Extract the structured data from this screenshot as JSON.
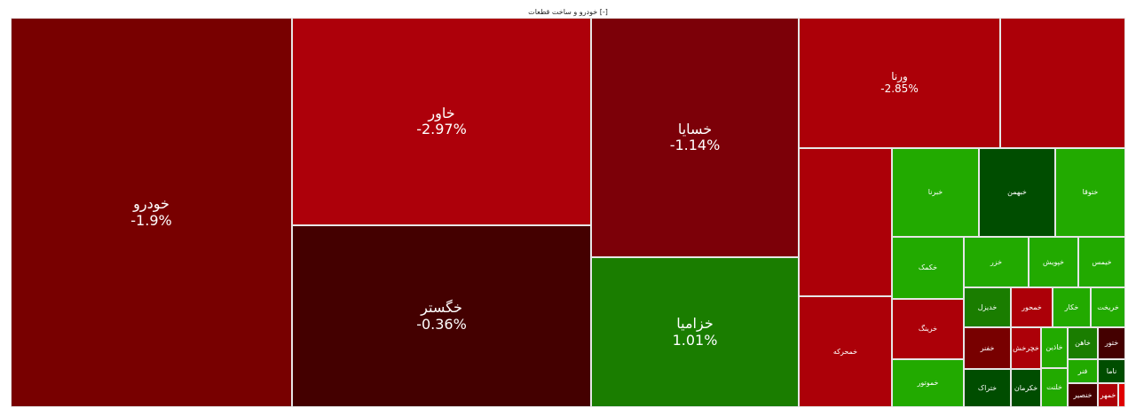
{
  "header": {
    "title": "خودرو و ساخت قطعات [-]"
  },
  "tiles": [
    {
      "label": "خودرو",
      "change": "-1.9%",
      "color": "#780000"
    },
    {
      "label": "خاور",
      "change": "-2.97%",
      "color": "#ad000a"
    },
    {
      "label": "خگستر",
      "change": "-0.36%",
      "color": "#440000"
    },
    {
      "label": "خسایا",
      "change": "-1.14%",
      "color": "#7c0008"
    },
    {
      "label": "خزامیا",
      "change": "1.01%",
      "color": "#1a7d00"
    },
    {
      "label": "ورنا",
      "change": "-2.85%",
      "color": "#ac0008"
    },
    {
      "color": "#ac0008"
    },
    {
      "color": "#ac0008"
    },
    {
      "label": "خمحرکه",
      "color": "#ac0008"
    },
    {
      "label": "خبرنا",
      "color": "#22aa00"
    },
    {
      "label": "خبهمن",
      "color": "#004d00"
    },
    {
      "label": "ختوقا",
      "color": "#22aa00"
    },
    {
      "label": "خکمک",
      "color": "#22aa00"
    },
    {
      "label": "خرینگ",
      "color": "#ac0008"
    },
    {
      "label": "خموتور",
      "color": "#22aa00"
    },
    {
      "label": "خزر",
      "color": "#22aa00"
    },
    {
      "label": "خپویش",
      "color": "#22aa00"
    },
    {
      "label": "خیمس",
      "color": "#22aa00"
    },
    {
      "label": "خدیزل",
      "color": "#1a7d00"
    },
    {
      "label": "خمحور",
      "color": "#ac0008"
    },
    {
      "label": "خکار",
      "color": "#22aa00"
    },
    {
      "label": "خریخت",
      "color": "#22aa00"
    },
    {
      "label": "خفنر",
      "color": "#780000"
    },
    {
      "label": "خچرخش",
      "color": "#ac0008"
    },
    {
      "label": "خاذین",
      "color": "#22aa00"
    },
    {
      "label": "خاهن",
      "color": "#1a7d00"
    },
    {
      "label": "ختور",
      "color": "#440000"
    },
    {
      "label": "ختراک",
      "color": "#004d00"
    },
    {
      "label": "خکرمان",
      "color": "#004d00"
    },
    {
      "label": "خلنت",
      "color": "#22aa00"
    },
    {
      "label": "فنر",
      "color": "#22aa00"
    },
    {
      "label": "ناما",
      "color": "#004d00"
    },
    {
      "label": "خنصیر",
      "color": "#440000"
    },
    {
      "label": "خمهر",
      "color": "#ac0008"
    },
    {
      "color": "#e00000"
    }
  ]
}
